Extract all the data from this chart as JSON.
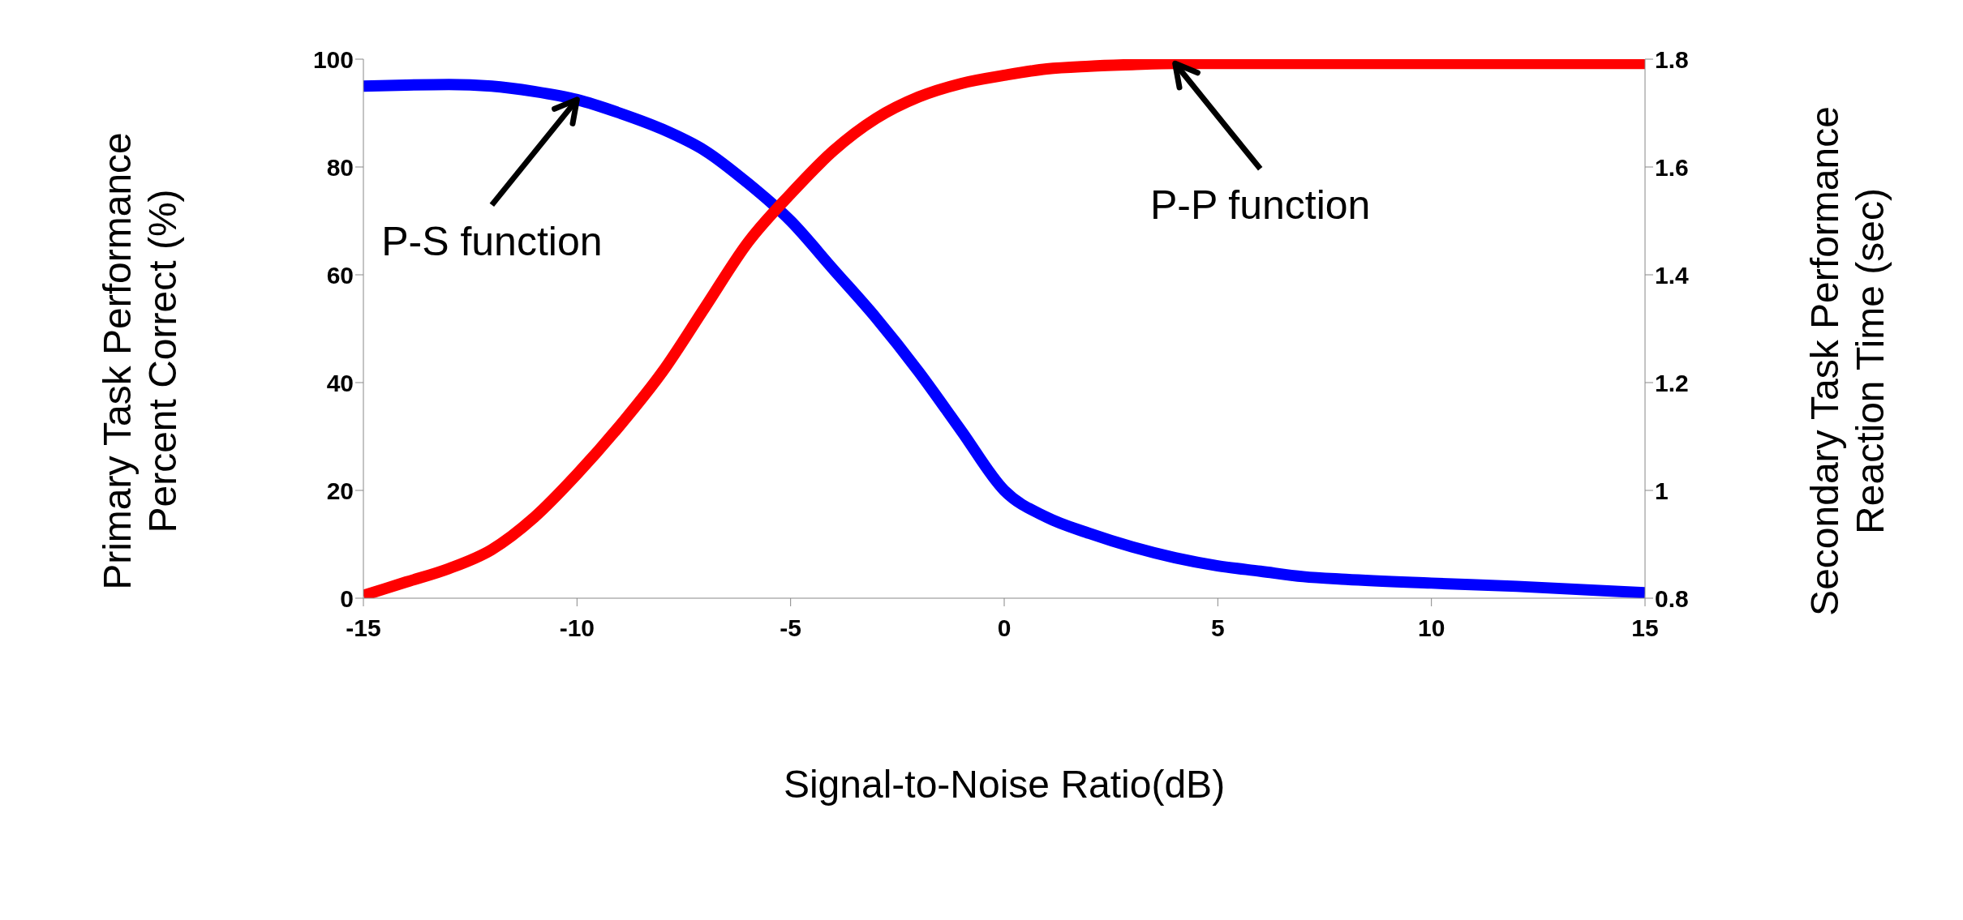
{
  "chart_data": {
    "type": "line",
    "xlabel": "Signal-to-Noise Ratio(dB)",
    "ylabel": "Primary Task Performance\nPercent Correct (%)",
    "y2label": "Secondary Task Performance\nReaction Time (sec)",
    "xlim": [
      -15,
      15
    ],
    "xticks": [
      -15,
      -10,
      -5,
      0,
      5,
      10,
      15
    ],
    "ylim": [
      0,
      100
    ],
    "yticks": [
      0,
      20,
      40,
      60,
      80,
      100
    ],
    "y2lim": [
      0.8,
      1.8
    ],
    "y2ticks": [
      0.8,
      1,
      1.2,
      1.4,
      1.6,
      1.8
    ],
    "marker": "none",
    "line_style": "solid",
    "series": [
      {
        "color": "#0000ff",
        "axis": "y2",
        "x": [
          -15,
          -14,
          -13,
          -12,
          -11,
          -10,
          -9,
          -8,
          -7,
          -6,
          -5,
          -4,
          -3,
          -2,
          -1,
          0,
          1,
          2,
          3,
          4,
          5,
          6,
          7,
          8,
          10,
          12,
          15
        ],
        "values": [
          1.75,
          1.752,
          1.753,
          1.75,
          1.74,
          1.725,
          1.7,
          1.67,
          1.63,
          1.57,
          1.5,
          1.41,
          1.32,
          1.22,
          1.11,
          1.0,
          0.95,
          0.92,
          0.895,
          0.875,
          0.86,
          0.85,
          0.84,
          0.835,
          0.828,
          0.822,
          0.81
        ]
      },
      {
        "color": "#ff0000",
        "x": [
          -15,
          -14,
          -13,
          -12,
          -11,
          -10,
          -9,
          -8,
          -7,
          -6,
          -5,
          -4,
          -3,
          -2,
          -1,
          0,
          1,
          2,
          3,
          4,
          5,
          10,
          15
        ],
        "values": [
          0.5,
          3,
          5.5,
          9,
          15,
          23,
          32,
          42,
          54,
          66,
          75,
          83,
          89,
          93,
          95.5,
          97,
          98.2,
          98.7,
          99,
          99.2,
          99.2,
          99.2,
          99.2
        ]
      }
    ],
    "annotations": [
      {
        "text": "P-S function",
        "x": -10,
        "y": 92.5
      },
      {
        "text": "P-P function",
        "x": 4,
        "y": 99.2
      }
    ]
  }
}
